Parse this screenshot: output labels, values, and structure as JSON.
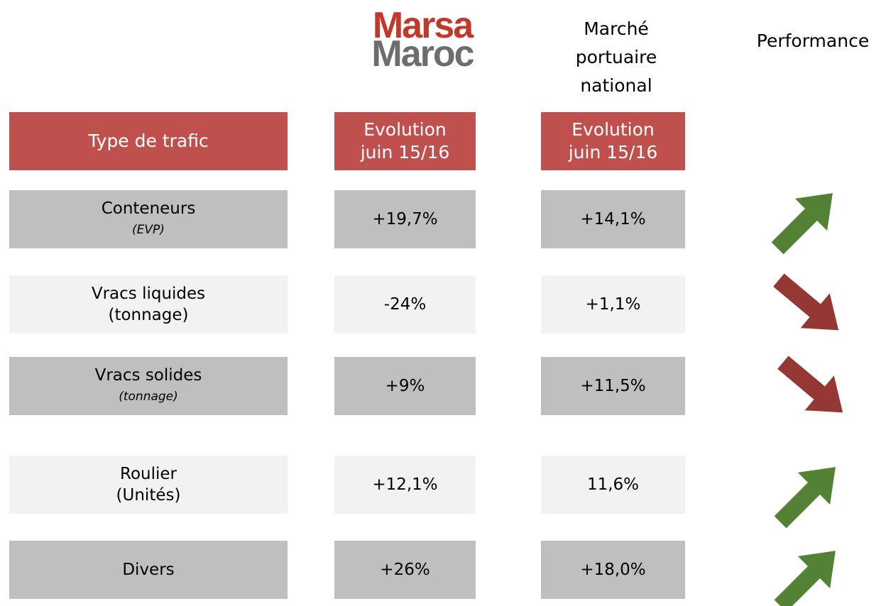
{
  "logo": {
    "line1": "Marsa",
    "line2": "Maroc"
  },
  "columns": {
    "national": "Marché portuaire national",
    "performance": "Performance"
  },
  "header": {
    "type": "Type de trafic",
    "evolution_marsa": [
      "Evolution",
      "juin 15/16"
    ],
    "evolution_national": [
      "Evolution",
      "juin 15/16"
    ]
  },
  "rows": [
    {
      "label": "Conteneurs",
      "unit": "(EVP)",
      "marsa": "+19,7%",
      "national": "+14,1%"
    },
    {
      "label": "Vracs liquides",
      "unit": "(tonnage)",
      "marsa": "-24%",
      "national": "+1,1%"
    },
    {
      "label": "Vracs solides",
      "unit": "(tonnage)",
      "marsa": "+9%",
      "national": "+11,5%"
    },
    {
      "label": "Roulier",
      "unit": "(Unités)",
      "marsa": "+12,1%",
      "national": "11,6%"
    },
    {
      "label": "Divers",
      "marsa": "+26%",
      "national": "+18,0%"
    }
  ]
}
